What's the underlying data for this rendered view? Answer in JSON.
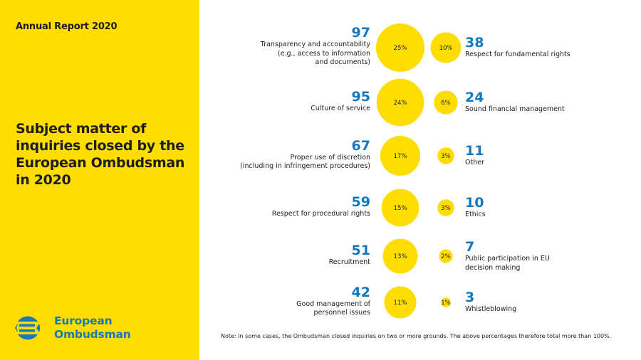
{
  "header": {
    "report_label": "Annual Report 2020"
  },
  "title": {
    "lines": [
      "Subject matter of",
      "inquiries closed by the",
      "European Ombudsman",
      "in 2020"
    ]
  },
  "logo": {
    "line1": "European",
    "line2": "Ombudsman",
    "icon": "european-ombudsman-logo-icon"
  },
  "colors": {
    "yellow": "#ffdd00",
    "blue": "#1478be",
    "text": "#1d1d1b"
  },
  "chart_data": {
    "type": "bubble",
    "title": "Subject matter of inquiries closed by the European Ombudsman in 2020",
    "left_column": [
      {
        "count": "97",
        "percent": "25%",
        "value": 25,
        "label_lines": [
          "Transparency and accountability",
          "(e.g., access to information",
          "and documents)"
        ]
      },
      {
        "count": "95",
        "percent": "24%",
        "value": 24,
        "label_lines": [
          "Culture of service"
        ]
      },
      {
        "count": "67",
        "percent": "17%",
        "value": 17,
        "label_lines": [
          "Proper use of discretion",
          "(including in infringement procedures)"
        ]
      },
      {
        "count": "59",
        "percent": "15%",
        "value": 15,
        "label_lines": [
          "Respect for procedural rights"
        ]
      },
      {
        "count": "51",
        "percent": "13%",
        "value": 13,
        "label_lines": [
          "Recruitment"
        ]
      },
      {
        "count": "42",
        "percent": "11%",
        "value": 11,
        "label_lines": [
          "Good management of",
          "personnel issues"
        ]
      }
    ],
    "right_column": [
      {
        "count": "38",
        "percent": "10%",
        "value": 10,
        "label_lines": [
          "Respect for fundamental rights"
        ]
      },
      {
        "count": "24",
        "percent": "6%",
        "value": 6,
        "label_lines": [
          "Sound financial management"
        ]
      },
      {
        "count": "11",
        "percent": "3%",
        "value": 3,
        "label_lines": [
          "Other"
        ]
      },
      {
        "count": "10",
        "percent": "3%",
        "value": 3,
        "label_lines": [
          "Ethics"
        ]
      },
      {
        "count": "7",
        "percent": "2%",
        "value": 2,
        "label_lines": [
          "Public participation in EU",
          "decision making"
        ]
      },
      {
        "count": "3",
        "percent": "1%",
        "value": 1,
        "label_lines": [
          "Whistleblowing"
        ]
      }
    ]
  },
  "note": "Note: In some cases, the Ombudsman closed inquiries on two or more grounds. The above percentages therefore total more than 100%."
}
